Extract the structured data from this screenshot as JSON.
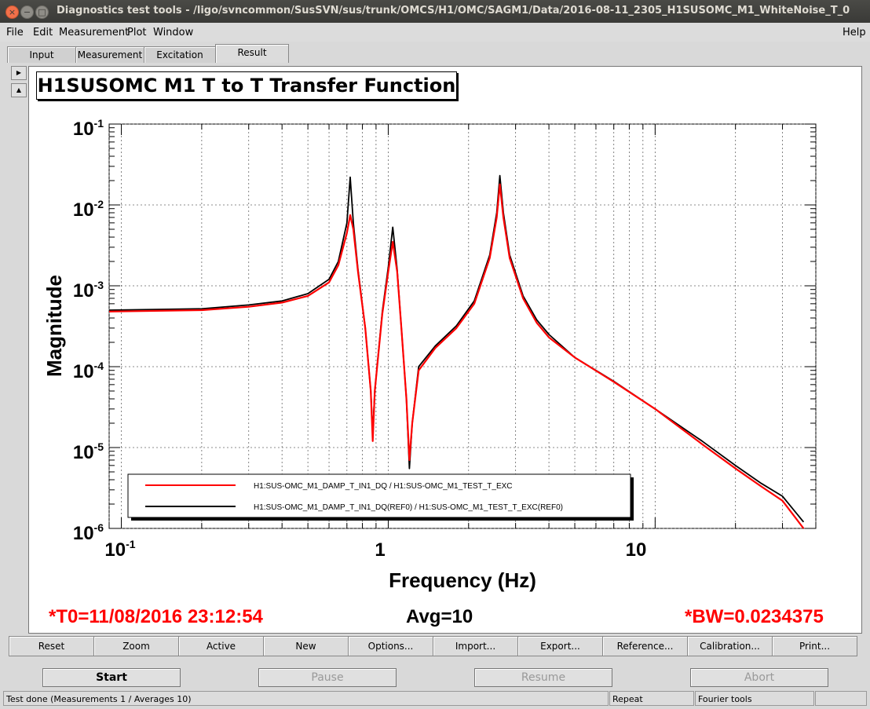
{
  "window": {
    "title": "Diagnostics test tools - /ligo/svncommon/SusSVN/sus/trunk/OMCS/H1/OMC/SAGM1/Data/2016-08-11_2305_H1SUSOMC_M1_WhiteNoise_T_0"
  },
  "menu": {
    "file": "File",
    "edit": "Edit",
    "measurement": "Measurement",
    "plot": "Plot",
    "window": "Window",
    "help": "Help"
  },
  "tabs": {
    "input": "Input",
    "measurement": "Measurement",
    "excitation": "Excitation",
    "result": "Result"
  },
  "plot": {
    "title": "H1SUSOMC M1 T to T Transfer Function",
    "t0": "*T0=11/08/2016 23:12:54",
    "avg": "Avg=10",
    "bw": "*BW=0.0234375"
  },
  "chart_data": {
    "type": "line",
    "title": "H1SUSOMC M1 T to T Transfer Function",
    "xlabel": "Frequency (Hz)",
    "ylabel": "Magnitude",
    "xscale": "log",
    "yscale": "log",
    "xlim": [
      0.09,
      40
    ],
    "ylim": [
      1e-06,
      0.1
    ],
    "x_ticks": [
      "10^-1",
      "1",
      "10"
    ],
    "y_ticks": [
      "10^-1",
      "10^-2",
      "10^-3",
      "10^-4",
      "10^-5",
      "10^-6"
    ],
    "grid": true,
    "legend": "bottom-left",
    "series": [
      {
        "name": "H1:SUS-OMC_M1_DAMP_T_IN1_DQ / H1:SUS-OMC_M1_TEST_T_EXC",
        "color": "#ff0000",
        "points": [
          [
            0.09,
            0.00048
          ],
          [
            0.2,
            0.0005
          ],
          [
            0.3,
            0.00055
          ],
          [
            0.4,
            0.00062
          ],
          [
            0.5,
            0.00075
          ],
          [
            0.6,
            0.0011
          ],
          [
            0.65,
            0.0018
          ],
          [
            0.7,
            0.0045
          ],
          [
            0.72,
            0.0075
          ],
          [
            0.74,
            0.005
          ],
          [
            0.77,
            0.0015
          ],
          [
            0.82,
            0.0003
          ],
          [
            0.86,
            5e-05
          ],
          [
            0.875,
            1.2e-05
          ],
          [
            0.89,
            5e-05
          ],
          [
            0.95,
            0.00045
          ],
          [
            1.0,
            0.0015
          ],
          [
            1.04,
            0.0035
          ],
          [
            1.08,
            0.0015
          ],
          [
            1.12,
            0.0003
          ],
          [
            1.17,
            4e-05
          ],
          [
            1.2,
            7e-06
          ],
          [
            1.23,
            2e-05
          ],
          [
            1.3,
            9e-05
          ],
          [
            1.5,
            0.00017
          ],
          [
            1.8,
            0.0003
          ],
          [
            2.1,
            0.0006
          ],
          [
            2.4,
            0.0022
          ],
          [
            2.55,
            0.007
          ],
          [
            2.62,
            0.018
          ],
          [
            2.7,
            0.007
          ],
          [
            2.85,
            0.0022
          ],
          [
            3.2,
            0.0007
          ],
          [
            3.6,
            0.00035
          ],
          [
            4.0,
            0.00023
          ],
          [
            5,
            0.00013
          ],
          [
            7,
            6.5e-05
          ],
          [
            10,
            3e-05
          ],
          [
            15,
            1.1e-05
          ],
          [
            20,
            5.5e-06
          ],
          [
            25,
            3.3e-06
          ],
          [
            30,
            2.2e-06
          ],
          [
            36,
            1e-06
          ]
        ]
      },
      {
        "name": "H1:SUS-OMC_M1_DAMP_T_IN1_DQ(REF0) / H1:SUS-OMC_M1_TEST_T_EXC(REF0)",
        "color": "#000000",
        "points": [
          [
            0.09,
            0.0005
          ],
          [
            0.2,
            0.00052
          ],
          [
            0.3,
            0.00058
          ],
          [
            0.4,
            0.00065
          ],
          [
            0.5,
            0.0008
          ],
          [
            0.6,
            0.0012
          ],
          [
            0.65,
            0.002
          ],
          [
            0.7,
            0.006
          ],
          [
            0.72,
            0.022
          ],
          [
            0.74,
            0.006
          ],
          [
            0.77,
            0.0016
          ],
          [
            0.82,
            0.0003
          ],
          [
            0.86,
            5e-05
          ],
          [
            0.875,
            1.5e-05
          ],
          [
            0.89,
            5e-05
          ],
          [
            0.95,
            0.00048
          ],
          [
            1.0,
            0.0017
          ],
          [
            1.04,
            0.0053
          ],
          [
            1.08,
            0.0016
          ],
          [
            1.12,
            0.0003
          ],
          [
            1.17,
            4e-05
          ],
          [
            1.2,
            5.5e-06
          ],
          [
            1.23,
            2e-05
          ],
          [
            1.3,
            0.0001
          ],
          [
            1.5,
            0.00018
          ],
          [
            1.8,
            0.00032
          ],
          [
            2.1,
            0.00065
          ],
          [
            2.4,
            0.0024
          ],
          [
            2.55,
            0.008
          ],
          [
            2.62,
            0.023
          ],
          [
            2.7,
            0.008
          ],
          [
            2.85,
            0.0024
          ],
          [
            3.2,
            0.00075
          ],
          [
            3.6,
            0.00038
          ],
          [
            4.0,
            0.00025
          ],
          [
            5,
            0.00013
          ],
          [
            7,
            6.6e-05
          ],
          [
            10,
            3e-05
          ],
          [
            15,
            1.2e-05
          ],
          [
            20,
            6e-06
          ],
          [
            25,
            3.6e-06
          ],
          [
            30,
            2.5e-06
          ],
          [
            36,
            1.2e-06
          ]
        ]
      }
    ]
  },
  "tools": [
    "Reset",
    "Zoom",
    "Active",
    "New",
    "Options...",
    "Import...",
    "Export...",
    "Reference...",
    "Calibration...",
    "Print..."
  ],
  "run": {
    "start": "Start",
    "pause": "Pause",
    "resume": "Resume",
    "abort": "Abort"
  },
  "status": {
    "message": "Test done (Measurements 1 / Averages 10)",
    "repeat": "Repeat",
    "fourier": "Fourier tools"
  }
}
